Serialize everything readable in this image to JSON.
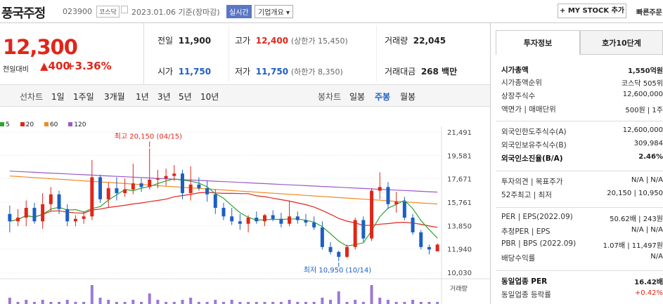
{
  "header": {
    "name": "풍국주정",
    "code": "023900",
    "market": "코스닥",
    "date": "2023.01.06",
    "date_note": "기준(장마감)",
    "live": "실시간",
    "corp": "기업개요",
    "mystock": "+ MY STOCK 추가",
    "quick": "빠른주문"
  },
  "quote": {
    "price": "12,300",
    "chg_label": "전일대비",
    "chg_val": "▲400",
    "chg_pct": "+3.36%",
    "prev_label": "전일",
    "prev": "11,900",
    "high_label": "고가",
    "high": "12,400",
    "upper_limit": "(상한가 15,450)",
    "volume_label": "거래량",
    "volume": "22,045",
    "open_label": "시가",
    "open": "11,750",
    "low_label": "저가",
    "low": "11,750",
    "lower_limit": "(하한가 8,350)",
    "amount_label": "거래대금",
    "amount": "268 백만"
  },
  "periods": {
    "line_label": "선차트",
    "line": [
      "1일",
      "1주일",
      "3개월",
      "1년",
      "3년",
      "5년",
      "10년"
    ],
    "candle_label": "봉차트",
    "candle": [
      "일봉",
      "주봉",
      "월봉"
    ],
    "active": "주봉"
  },
  "colors": {
    "up": "#e0261a",
    "down": "#1c5fc4",
    "ma5": "#2fa52f",
    "ma20": "#e0261a",
    "ma60": "#f08a24",
    "ma120": "#9b59c9"
  },
  "chart_data": {
    "type": "candlestick",
    "legend": [
      "5",
      "20",
      "60",
      "120"
    ],
    "y_ticks": [
      "21,491",
      "19,581",
      "17,671",
      "15,761",
      "13,850",
      "11,940",
      "10,030"
    ],
    "ylim": [
      10030,
      21491
    ],
    "max_label": "최고 20,150 (04/15)",
    "min_label": "최저 10,950 (10/14)",
    "volume_label": "거래량",
    "candles": [
      [
        14800,
        15500,
        13300,
        14200
      ],
      [
        14200,
        15200,
        13800,
        14500
      ],
      [
        14500,
        15900,
        13800,
        15300
      ],
      [
        15300,
        15700,
        14000,
        14200
      ],
      [
        14200,
        16500,
        13600,
        15600
      ],
      [
        15600,
        17000,
        15000,
        16400
      ],
      [
        16400,
        16700,
        14800,
        15200
      ],
      [
        15200,
        15600,
        13800,
        14200
      ],
      [
        14200,
        14700,
        13800,
        14400
      ],
      [
        14400,
        15000,
        14000,
        14600
      ],
      [
        14600,
        19200,
        14300,
        17800
      ],
      [
        17800,
        18000,
        15700,
        16000
      ],
      [
        16000,
        17400,
        15300,
        16900
      ],
      [
        16900,
        17800,
        15900,
        16500
      ],
      [
        16500,
        17700,
        16200,
        16800
      ],
      [
        16800,
        18900,
        16400,
        17300
      ],
      [
        17300,
        17700,
        16600,
        17000
      ],
      [
        17000,
        20150,
        16800,
        17600
      ],
      [
        17600,
        18400,
        16900,
        17700
      ],
      [
        17700,
        18500,
        17100,
        17900
      ],
      [
        17900,
        18800,
        17500,
        18100
      ],
      [
        18100,
        18400,
        16000,
        16500
      ],
      [
        16500,
        18700,
        15900,
        17200
      ],
      [
        17200,
        17800,
        16700,
        16900
      ],
      [
        16900,
        17500,
        15800,
        16400
      ],
      [
        16400,
        16800,
        14800,
        15300
      ],
      [
        15300,
        15700,
        14300,
        14600
      ],
      [
        14600,
        15300,
        13900,
        14200
      ],
      [
        14200,
        14800,
        13500,
        14000
      ],
      [
        14000,
        14700,
        13300,
        14500
      ],
      [
        14500,
        15000,
        14000,
        14200
      ],
      [
        14200,
        14800,
        13800,
        14700
      ],
      [
        14700,
        15100,
        14200,
        14400
      ],
      [
        14400,
        14900,
        13700,
        14000
      ],
      [
        14000,
        15900,
        13800,
        14600
      ],
      [
        14600,
        15000,
        14000,
        14300
      ],
      [
        14300,
        14800,
        13800,
        14100
      ],
      [
        14100,
        14600,
        13500,
        13700
      ],
      [
        13700,
        14200,
        11900,
        12100
      ],
      [
        12100,
        12500,
        11500,
        11700
      ],
      [
        11700,
        11800,
        10950,
        11300
      ],
      [
        11300,
        12300,
        11200,
        12100
      ],
      [
        12100,
        14500,
        11900,
        14300
      ],
      [
        14300,
        14600,
        12500,
        12800
      ],
      [
        12800,
        16900,
        12600,
        16700
      ],
      [
        16700,
        18200,
        16000,
        17000
      ],
      [
        17000,
        17400,
        15200,
        15600
      ],
      [
        15600,
        16600,
        14900,
        15800
      ],
      [
        15800,
        16200,
        14300,
        14500
      ],
      [
        14500,
        14800,
        13100,
        13300
      ],
      [
        13300,
        13500,
        11900,
        12100
      ],
      [
        12100,
        12300,
        11500,
        11900
      ],
      [
        11750,
        12400,
        11750,
        12300
      ]
    ],
    "volumes": [
      3,
      1,
      2,
      1,
      2,
      1,
      1,
      2,
      1,
      1,
      9,
      3,
      2,
      1,
      1,
      2,
      1,
      5,
      2,
      1,
      1,
      2,
      3,
      1,
      1,
      2,
      1,
      2,
      1,
      1,
      1,
      1,
      1,
      1,
      2,
      1,
      1,
      1,
      3,
      2,
      6,
      1,
      2,
      1,
      9,
      3,
      2,
      1,
      1,
      2,
      1,
      1,
      1
    ]
  },
  "right": {
    "tabs": [
      "투자정보",
      "호가10단계"
    ],
    "rows": [
      {
        "label": "시가총액",
        "value": "1,550억원",
        "bold": true
      },
      {
        "label": "시가총액순위",
        "value": "코스닥 505위"
      },
      {
        "label": "상장주식수",
        "value": "12,600,000"
      },
      {
        "label": "액면가 | 매매단위",
        "value": "500원 | 1주"
      },
      {
        "label": "외국인한도주식수(A)",
        "value": "12,600,000"
      },
      {
        "label": "외국인보유주식수(B)",
        "value": "309,984"
      },
      {
        "label": "외국인소진율(B/A)",
        "value": "2.46%",
        "bold": true
      },
      {
        "label": "투자의견 | 목표주가",
        "value": "N/A | N/A"
      },
      {
        "label": "52주최고 | 최저",
        "value": "20,150 | 10,950"
      },
      {
        "label": "PER | EPS(2022.09)",
        "value": "50.62배 | 243원"
      },
      {
        "label": "추정PER | EPS",
        "value": "N/A | N/A"
      },
      {
        "label": "PBR | BPS (2022.09)",
        "value": "1.07배 | 11,497원"
      },
      {
        "label": "배당수익률",
        "value": "N/A"
      },
      {
        "label": "동일업종 PER",
        "value": "16.42배",
        "bold": true
      },
      {
        "label": "동일업종 등락률",
        "value": "+0.42%",
        "red": true
      }
    ]
  }
}
